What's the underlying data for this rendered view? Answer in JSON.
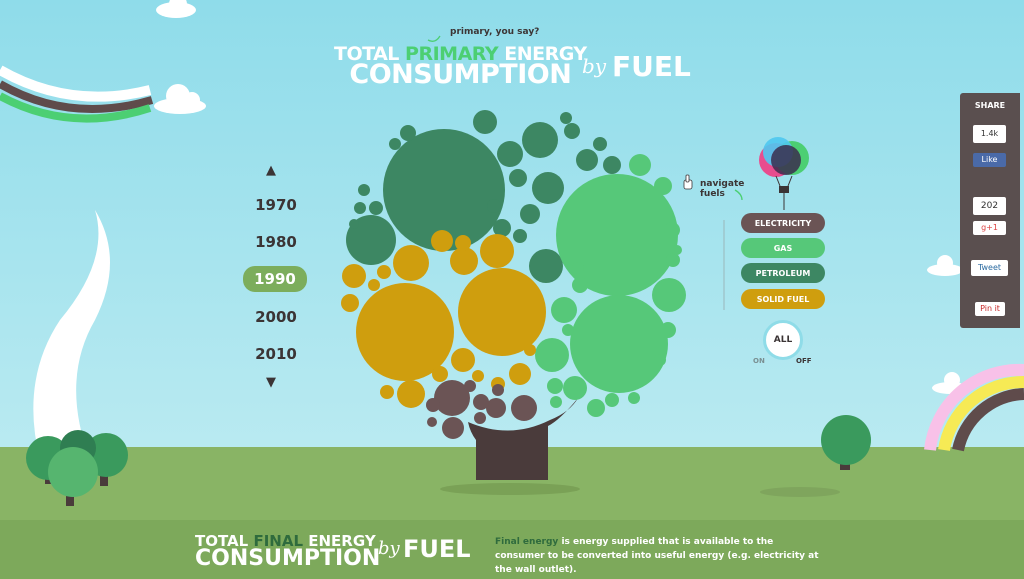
{
  "header": {
    "note": "primary, you say?",
    "title_pre": "TOTAL",
    "title_highlight": "PRIMARY",
    "title_post": "ENERGY",
    "title_line2": "CONSUMPTION",
    "by": "by",
    "fuel": "FUEL"
  },
  "years": {
    "items": [
      "1970",
      "1980",
      "1990",
      "2000",
      "2010"
    ],
    "active": "1990"
  },
  "navigate_note": "navigate fuels",
  "fuels": {
    "electricity": "ELECTRICITY",
    "gas": "GAS",
    "petroleum": "PETROLEUM",
    "solid_fuel": "SOLID FUEL",
    "all": "ALL",
    "on": "ON",
    "off": "OFF"
  },
  "colors": {
    "electricity": "#6b5455",
    "gas": "#56c879",
    "petroleum": "#3d8763",
    "solid_fuel": "#cf9e0e"
  },
  "share": {
    "title": "SHARE",
    "like_count": "1.4k",
    "like_label": "Like",
    "plus_count": "202",
    "plus_label": "g+1",
    "tweet_label": "Tweet",
    "pin_label": "Pin it"
  },
  "footer": {
    "title_pre": "TOTAL",
    "title_highlight": "FINAL",
    "title_post": "ENERGY",
    "title_line2": "CONSUMPTION",
    "by": "by",
    "fuel": "FUEL",
    "desc_keyword": "Final energy",
    "desc_rest": "is energy supplied that is available to the consumer to be converted into useful energy (e.g. electricity at the wall outlet)."
  }
}
